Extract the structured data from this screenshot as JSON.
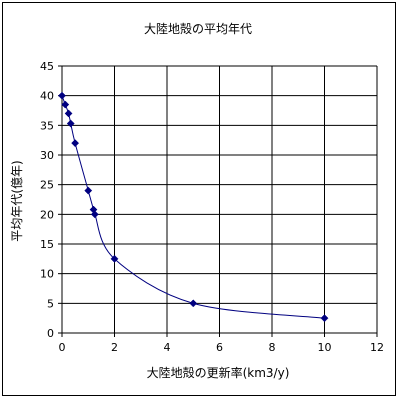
{
  "chart_data": {
    "type": "scatter",
    "title": "大陸地殻の平均年代",
    "xlabel": "大陸地殻の更新率(km3/y)",
    "ylabel": "平均年代(億年)",
    "xlim": [
      0,
      12
    ],
    "ylim": [
      0,
      45
    ],
    "xticks": [
      "0",
      "2",
      "4",
      "6",
      "8",
      "10",
      "12"
    ],
    "yticks": [
      "0",
      "5",
      "10",
      "15",
      "20",
      "25",
      "30",
      "35",
      "40",
      "45"
    ],
    "grid": true,
    "legend": "none",
    "series": [
      {
        "marker": "diamond",
        "line": "smooth",
        "points": [
          {
            "x": 0,
            "y": 40
          },
          {
            "x": 0.125,
            "y": 38.5
          },
          {
            "x": 0.25,
            "y": 37
          },
          {
            "x": 0.333,
            "y": 35.3
          },
          {
            "x": 0.5,
            "y": 32
          },
          {
            "x": 1,
            "y": 24
          },
          {
            "x": 1.2,
            "y": 20.8
          },
          {
            "x": 1.25,
            "y": 20
          },
          {
            "x": 2,
            "y": 12.5
          },
          {
            "x": 5,
            "y": 5
          },
          {
            "x": 10,
            "y": 2.5
          }
        ]
      }
    ],
    "colors": {
      "series": "#000080",
      "grid": "#000000",
      "axis": "#000000",
      "text": "#000000"
    }
  }
}
